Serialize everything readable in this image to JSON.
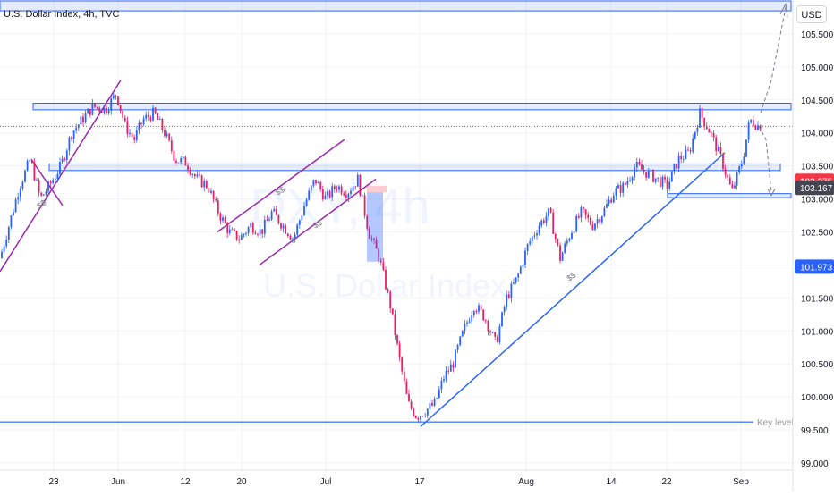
{
  "header": {
    "title": "U.S. Dollar Index, 4h, TVC"
  },
  "currency_button": "USD",
  "watermark": {
    "symbol": "DXY, 4h",
    "name": "U.S. Dollar Index"
  },
  "colors": {
    "up": "#2962ff",
    "down": "#e91e63",
    "zone": "#2962ff",
    "channel": "#9c27b0",
    "grid": "#f0f3fa"
  },
  "chart_data": {
    "type": "candlestick",
    "y_axis": {
      "min": 99.0,
      "max": 106.0,
      "side": "right",
      "ticks": [
        "99.000",
        "99.500",
        "100.000",
        "100.500",
        "101.000",
        "101.500",
        "102.000",
        "102.500",
        "103.000",
        "103.500",
        "104.000",
        "104.500",
        "105.000",
        "105.500"
      ]
    },
    "x_axis": {
      "ticks": [
        "23",
        "Jun",
        "12",
        "20",
        "Jul",
        "17",
        "Aug",
        "14",
        "22",
        "Sep"
      ]
    },
    "price_labels": [
      {
        "value": 103.275,
        "text": "103.275",
        "color": "#f23645"
      },
      {
        "value": 103.167,
        "text": "103.167",
        "color": "#434651"
      },
      {
        "value": 101.973,
        "text": "101.973",
        "color": "#2962ff"
      }
    ],
    "zones": [
      {
        "from": 105.85,
        "to": 106.0,
        "label": ""
      },
      {
        "from": 104.35,
        "to": 104.45,
        "label": ""
      },
      {
        "from": 103.43,
        "to": 103.53,
        "label": ""
      },
      {
        "from": 103.02,
        "to": 103.08,
        "label": ""
      }
    ],
    "key_level": {
      "value": 99.62,
      "label": "Key level"
    },
    "current_price_line": 104.1,
    "annotations": [
      "$$",
      "$$",
      "$$",
      "$$"
    ],
    "path": [
      [
        0,
        102.1
      ],
      [
        10,
        102.6
      ],
      [
        22,
        103.2
      ],
      [
        34,
        103.6
      ],
      [
        45,
        103.0
      ],
      [
        55,
        103.2
      ],
      [
        68,
        103.5
      ],
      [
        80,
        104.0
      ],
      [
        92,
        104.2
      ],
      [
        104,
        104.4
      ],
      [
        118,
        104.35
      ],
      [
        130,
        104.6
      ],
      [
        140,
        104.1
      ],
      [
        150,
        103.9
      ],
      [
        160,
        104.2
      ],
      [
        172,
        104.3
      ],
      [
        184,
        104.0
      ],
      [
        196,
        103.6
      ],
      [
        208,
        103.55
      ],
      [
        220,
        103.3
      ],
      [
        232,
        103.2
      ],
      [
        244,
        102.8
      ],
      [
        256,
        102.5
      ],
      [
        268,
        102.4
      ],
      [
        280,
        102.6
      ],
      [
        292,
        102.5
      ],
      [
        304,
        102.8
      ],
      [
        316,
        102.6
      ],
      [
        328,
        102.4
      ],
      [
        340,
        102.9
      ],
      [
        352,
        103.3
      ],
      [
        364,
        103.0
      ],
      [
        376,
        103.2
      ],
      [
        388,
        103.1
      ],
      [
        400,
        103.3
      ],
      [
        412,
        102.5
      ],
      [
        424,
        102.1
      ],
      [
        436,
        101.4
      ],
      [
        446,
        100.6
      ],
      [
        456,
        99.9
      ],
      [
        466,
        99.7
      ],
      [
        476,
        99.8
      ],
      [
        486,
        99.9
      ],
      [
        496,
        100.3
      ],
      [
        506,
        100.5
      ],
      [
        518,
        101.0
      ],
      [
        530,
        101.4
      ],
      [
        542,
        101.2
      ],
      [
        554,
        100.8
      ],
      [
        566,
        101.5
      ],
      [
        578,
        101.8
      ],
      [
        590,
        102.3
      ],
      [
        602,
        102.6
      ],
      [
        614,
        102.8
      ],
      [
        626,
        102.1
      ],
      [
        638,
        102.5
      ],
      [
        650,
        102.8
      ],
      [
        662,
        102.6
      ],
      [
        674,
        102.8
      ],
      [
        686,
        103.1
      ],
      [
        698,
        103.2
      ],
      [
        710,
        103.5
      ],
      [
        722,
        103.4
      ],
      [
        734,
        103.3
      ],
      [
        746,
        103.2
      ],
      [
        758,
        103.6
      ],
      [
        770,
        103.7
      ],
      [
        782,
        104.3
      ],
      [
        794,
        104.0
      ],
      [
        806,
        103.6
      ],
      [
        818,
        103.1
      ],
      [
        830,
        103.6
      ],
      [
        838,
        104.2
      ],
      [
        848,
        104.1
      ]
    ]
  }
}
